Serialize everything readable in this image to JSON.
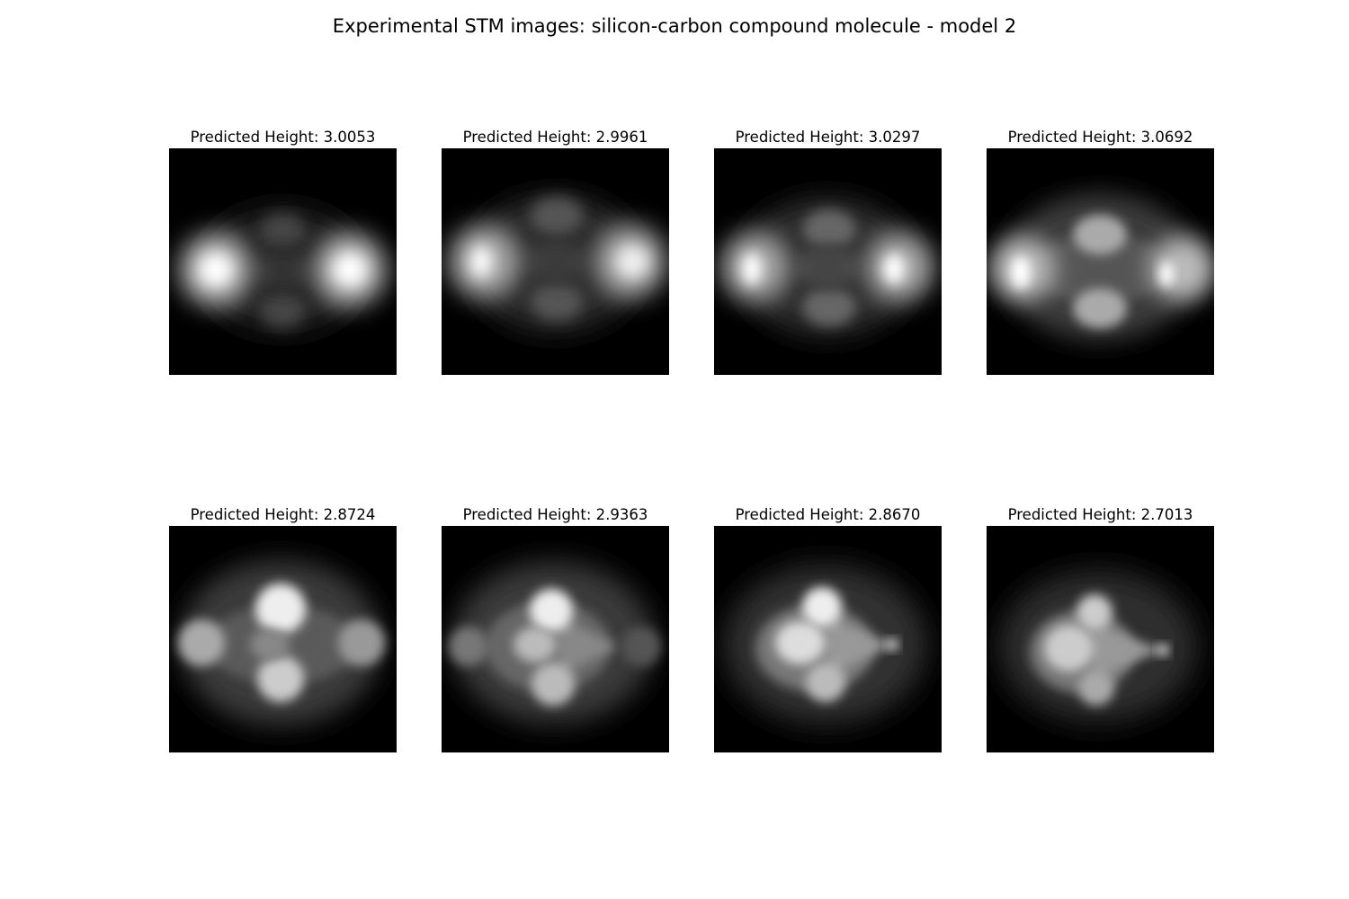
{
  "figure": {
    "title": "Experimental STM images: silicon-carbon compound molecule - model 2"
  },
  "panels": [
    {
      "title": "Predicted Height: 3.0053"
    },
    {
      "title": "Predicted Height: 2.9961"
    },
    {
      "title": "Predicted Height: 3.0297"
    },
    {
      "title": "Predicted Height: 3.0692"
    },
    {
      "title": "Predicted Height: 2.8724"
    },
    {
      "title": "Predicted Height: 2.9363"
    },
    {
      "title": "Predicted Height: 2.8670"
    },
    {
      "title": "Predicted Height: 2.7013"
    }
  ],
  "colors": {
    "background": "#ffffff",
    "image_background": "#000000",
    "image_highlight": "#ffffff"
  }
}
